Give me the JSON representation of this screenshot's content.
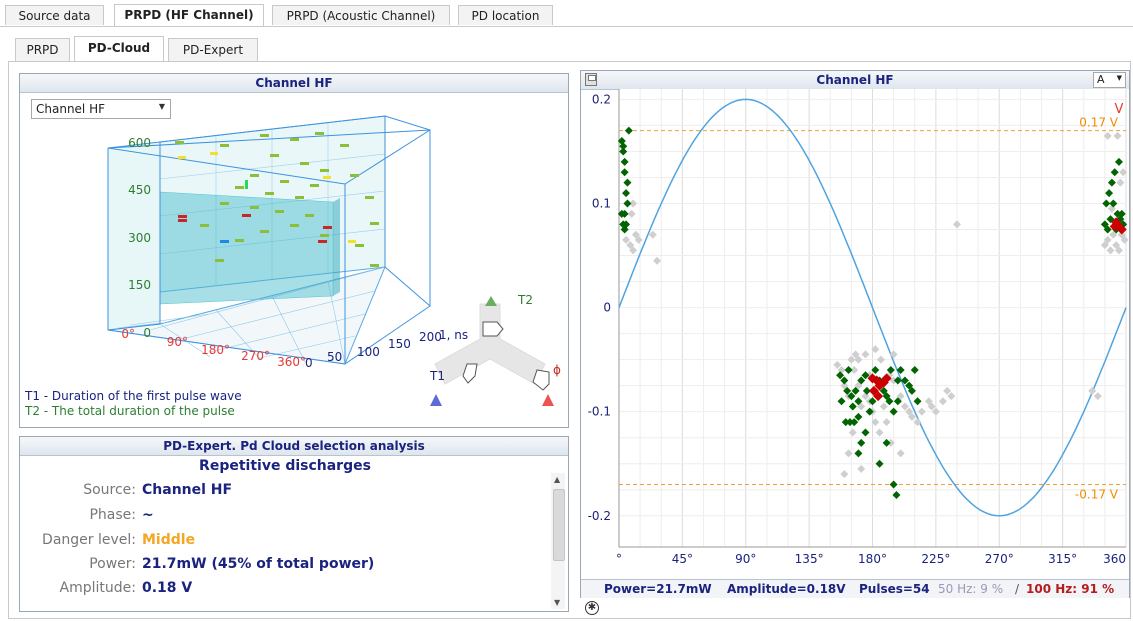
{
  "tabs_top": [
    {
      "label": "Source data",
      "active": false
    },
    {
      "label": "PRPD (HF Channel)",
      "active": true
    },
    {
      "label": "PRPD (Acoustic Channel)",
      "active": false
    },
    {
      "label": "PD location",
      "active": false
    }
  ],
  "tabs_sub": [
    {
      "label": "PRPD",
      "active": false
    },
    {
      "label": "PD-Cloud",
      "active": true
    },
    {
      "label": "PD-Expert",
      "active": false
    }
  ],
  "cloud_panel": {
    "title": "Channel HF",
    "channel_select": "Channel HF",
    "z_ticks": [
      "600",
      "450",
      "300",
      "150",
      "0"
    ],
    "phase_ticks": [
      "0°",
      "90°",
      "180°",
      "270°",
      "360°"
    ],
    "t1_ticks": [
      "0",
      "50",
      "100",
      "150",
      "200"
    ],
    "t1_axis_label": "1, ns",
    "legend_t1": "T1 - Duration of the first pulse wave",
    "legend_t2": "T2 - The total duration of the pulse",
    "nav_t1": "T1",
    "nav_t2": "T2",
    "nav_phi": "ϕ"
  },
  "expert_panel": {
    "title": "PD-Expert. Pd Cloud selection analysis",
    "heading": "Repetitive discharges",
    "rows": [
      {
        "label": "Source:",
        "value": "Channel HF",
        "color": "#1a237e"
      },
      {
        "label": "Phase:",
        "value": "~",
        "color": "#1a237e"
      },
      {
        "label": "Danger level:",
        "value": "Middle",
        "color": "#f5a623"
      },
      {
        "label": "Power:",
        "value": "21.7mW (45% of total power)",
        "color": "#1a237e"
      },
      {
        "label": "Amplitude:",
        "value": "0.18 V",
        "color": "#1a237e"
      }
    ]
  },
  "prpd_panel": {
    "title": "Channel HF",
    "scale_select": "A",
    "threshold_pos": "0.17 V",
    "threshold_neg": "-0.17 V",
    "corner_mark": "V",
    "status_power": "Power=21.7mW",
    "status_amplitude": "Amplitude=0.18V",
    "status_pulses": "Pulses=54",
    "status_50hz": "50 Hz: 9 %",
    "status_sep": "/",
    "status_100hz": "100 Hz: 91 %",
    "x_tick_labels": [
      "°",
      "45°",
      "90°",
      "135°",
      "180°",
      "225°",
      "270°",
      "315°",
      "360"
    ],
    "y_tick_labels": [
      "0.2",
      "0.1",
      "0",
      "-0.1",
      "-0.2"
    ]
  },
  "chart_data": {
    "type": "scatter",
    "title": "Channel HF",
    "xlabel": "",
    "ylabel": "",
    "xlim": [
      0,
      360
    ],
    "ylim": [
      -0.23,
      0.21
    ],
    "x_ticks": [
      0,
      45,
      90,
      135,
      180,
      225,
      270,
      315,
      360
    ],
    "y_ticks": [
      0.2,
      0.1,
      0,
      -0.1,
      -0.2
    ],
    "grid": true,
    "reference_lines": [
      {
        "label": "0.17 V",
        "y": 0.17
      },
      {
        "label": "-0.17 V",
        "y": -0.17
      }
    ],
    "sine": {
      "amplitude": 0.2,
      "period_deg": 360
    },
    "series": [
      {
        "color": "#006400",
        "points": [
          [
            2,
            0.16
          ],
          [
            3,
            0.15
          ],
          [
            4,
            0.13
          ],
          [
            5,
            0.11
          ],
          [
            4,
            0.09
          ],
          [
            3,
            0.08
          ],
          [
            5,
            0.08
          ],
          [
            6,
            0.12
          ],
          [
            2,
            0.09
          ],
          [
            4,
            0.14
          ],
          [
            7,
            0.17
          ],
          [
            6,
            0.1
          ],
          [
            4,
            0.075
          ],
          [
            3,
            0.155
          ],
          [
            346,
            0.1
          ],
          [
            348,
            0.11
          ],
          [
            350,
            0.12
          ],
          [
            352,
            0.13
          ],
          [
            354,
            0.09
          ],
          [
            356,
            0.085
          ],
          [
            358,
            0.08
          ],
          [
            345,
            0.08
          ],
          [
            347,
            0.075
          ],
          [
            349,
            0.085
          ],
          [
            351,
            0.1
          ],
          [
            353,
            0.075
          ],
          [
            355,
            0.14
          ],
          [
            357,
            0.09
          ],
          [
            157,
            -0.065
          ],
          [
            160,
            -0.07
          ],
          [
            162,
            -0.08
          ],
          [
            165,
            -0.085
          ],
          [
            168,
            -0.08
          ],
          [
            170,
            -0.09
          ],
          [
            172,
            -0.07
          ],
          [
            175,
            -0.065
          ],
          [
            158,
            -0.09
          ],
          [
            161,
            -0.11
          ],
          [
            164,
            -0.11
          ],
          [
            167,
            -0.11
          ],
          [
            170,
            -0.14
          ],
          [
            172,
            -0.13
          ],
          [
            175,
            -0.12
          ],
          [
            178,
            -0.1
          ],
          [
            180,
            -0.09
          ],
          [
            185,
            -0.07
          ],
          [
            188,
            -0.08
          ],
          [
            190,
            -0.085
          ],
          [
            192,
            -0.09
          ],
          [
            195,
            -0.1
          ],
          [
            198,
            -0.09
          ],
          [
            185,
            -0.15
          ],
          [
            190,
            -0.13
          ],
          [
            195,
            -0.17
          ],
          [
            197,
            -0.18
          ],
          [
            200,
            -0.06
          ],
          [
            203,
            -0.07
          ],
          [
            206,
            -0.075
          ],
          [
            210,
            -0.06
          ],
          [
            208,
            -0.08
          ],
          [
            212,
            -0.09
          ],
          [
            198,
            -0.07
          ],
          [
            193,
            -0.06
          ],
          [
            182,
            -0.06
          ],
          [
            176,
            -0.08
          ],
          [
            163,
            -0.06
          ],
          [
            166,
            -0.095
          ],
          [
            170,
            -0.105
          ]
        ]
      },
      {
        "color": "#cc0000",
        "points": [
          [
            180,
            -0.068
          ],
          [
            183,
            -0.07
          ],
          [
            185,
            -0.075
          ],
          [
            188,
            -0.072
          ],
          [
            190,
            -0.068
          ],
          [
            181,
            -0.08
          ],
          [
            184,
            -0.085
          ],
          [
            352,
            0.078
          ],
          [
            355,
            0.078
          ],
          [
            357,
            0.075
          ],
          [
            353,
            0.082
          ]
        ]
      },
      {
        "color": "#cfcfcf",
        "points": [
          [
            5,
            0.065
          ],
          [
            8,
            0.06
          ],
          [
            10,
            0.055
          ],
          [
            12,
            0.07
          ],
          [
            14,
            0.065
          ],
          [
            24,
            0.07
          ],
          [
            27,
            0.045
          ],
          [
            6,
            0.12
          ],
          [
            9,
            0.09
          ],
          [
            10,
            0.1
          ],
          [
            155,
            -0.055
          ],
          [
            158,
            -0.06
          ],
          [
            160,
            -0.075
          ],
          [
            163,
            -0.085
          ],
          [
            167,
            -0.06
          ],
          [
            170,
            -0.075
          ],
          [
            172,
            -0.095
          ],
          [
            175,
            -0.085
          ],
          [
            178,
            -0.09
          ],
          [
            180,
            -0.1
          ],
          [
            182,
            -0.11
          ],
          [
            185,
            -0.12
          ],
          [
            188,
            -0.095
          ],
          [
            192,
            -0.065
          ],
          [
            195,
            -0.07
          ],
          [
            200,
            -0.085
          ],
          [
            203,
            -0.095
          ],
          [
            206,
            -0.1
          ],
          [
            208,
            -0.105
          ],
          [
            212,
            -0.11
          ],
          [
            215,
            -0.1
          ],
          [
            220,
            -0.09
          ],
          [
            222,
            -0.095
          ],
          [
            225,
            -0.1
          ],
          [
            230,
            -0.09
          ],
          [
            233,
            -0.08
          ],
          [
            236,
            -0.085
          ],
          [
            240,
            0.08
          ],
          [
            160,
            -0.16
          ],
          [
            163,
            -0.14
          ],
          [
            166,
            -0.12
          ],
          [
            172,
            -0.155
          ],
          [
            190,
            -0.11
          ],
          [
            193,
            -0.13
          ],
          [
            200,
            -0.14
          ],
          [
            186,
            -0.05
          ],
          [
            195,
            -0.045
          ],
          [
            182,
            -0.04
          ],
          [
            178,
            -0.065
          ],
          [
            170,
            -0.05
          ],
          [
            175,
            -0.045
          ],
          [
            165,
            -0.05
          ],
          [
            168,
            -0.045
          ],
          [
            345,
            0.06
          ],
          [
            347,
            0.065
          ],
          [
            349,
            0.055
          ],
          [
            351,
            0.07
          ],
          [
            353,
            0.06
          ],
          [
            355,
            0.055
          ],
          [
            357,
            0.07
          ],
          [
            359,
            0.065
          ],
          [
            350,
            0.095
          ],
          [
            356,
            0.12
          ],
          [
            358,
            0.13
          ],
          [
            354,
            0.165
          ],
          [
            347,
            0.165
          ],
          [
            336,
            -0.08
          ],
          [
            340,
            -0.085
          ]
        ]
      }
    ]
  }
}
